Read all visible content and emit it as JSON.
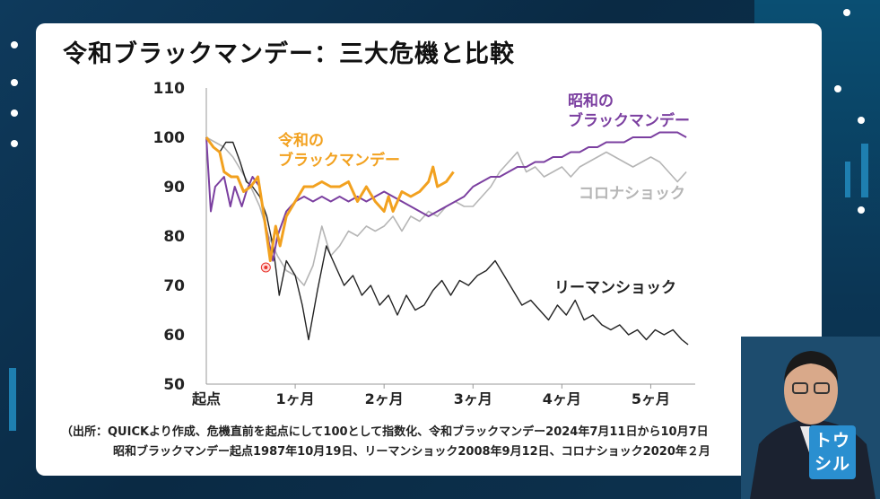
{
  "title": "令和ブラックマンデー：三大危機と比較",
  "footnote_line1": "（出所：QUICKより作成、危機直前を起点にして100として指数化、令和ブラックマンデー2024年7月11日から10月7日",
  "footnote_line2": "昭和ブラックマンデー起点1987年10月19日、リーマンショック2008年9月12日、コロナショック2020年２月",
  "logo": {
    "line1": "トウ",
    "line2": "シル"
  },
  "colors": {
    "reiwa": "#f2a11f",
    "showa": "#7b3fa0",
    "corona": "#b5b5b5",
    "lehman": "#222222",
    "marker": "#e8352d"
  },
  "chart_data": {
    "type": "line",
    "ylim": [
      50,
      110
    ],
    "yticks": [
      "110",
      "100",
      "90",
      "80",
      "70",
      "60",
      "50"
    ],
    "xticks": [
      "起点",
      "1ヶ月",
      "2ヶ月",
      "3ヶ月",
      "4ヶ月",
      "5ヶ月"
    ],
    "xlim": [
      0,
      5.5
    ],
    "series": [
      {
        "name": "令和のブラックマンデー",
        "label_lines": [
          "令和の",
          "ブラックマンデー"
        ],
        "color_key": "reiwa",
        "x": [
          0,
          0.08,
          0.15,
          0.2,
          0.28,
          0.35,
          0.42,
          0.5,
          0.58,
          0.65,
          0.72,
          0.78,
          0.83,
          0.9,
          1.0,
          1.1,
          1.2,
          1.3,
          1.4,
          1.5,
          1.6,
          1.7,
          1.8,
          1.9,
          2.0,
          2.05,
          2.1,
          2.2,
          2.3,
          2.4,
          2.5,
          2.55,
          2.6,
          2.7,
          2.78
        ],
        "values": [
          100,
          98,
          97,
          93,
          92,
          92,
          89,
          90,
          92,
          84,
          75,
          82,
          78,
          84,
          87,
          90,
          90,
          91,
          90,
          90,
          91,
          87,
          90,
          87,
          85,
          88,
          85,
          89,
          88,
          89,
          91,
          94,
          90,
          91,
          93
        ]
      },
      {
        "name": "昭和のブラックマンデー",
        "label_lines": [
          "昭和の",
          "ブラックマンデー"
        ],
        "color_key": "showa",
        "x": [
          0,
          0.05,
          0.1,
          0.15,
          0.2,
          0.27,
          0.32,
          0.4,
          0.45,
          0.52,
          0.6,
          0.65,
          0.7,
          0.75,
          0.8,
          0.9,
          1.0,
          1.1,
          1.2,
          1.3,
          1.4,
          1.5,
          1.6,
          1.7,
          1.8,
          1.9,
          2.0,
          2.1,
          2.2,
          2.3,
          2.4,
          2.5,
          2.6,
          2.7,
          2.8,
          2.9,
          3.0,
          3.1,
          3.2,
          3.3,
          3.4,
          3.5,
          3.6,
          3.7,
          3.8,
          3.9,
          4.0,
          4.1,
          4.2,
          4.3,
          4.4,
          4.5,
          4.6,
          4.7,
          4.8,
          4.9,
          5.0,
          5.1,
          5.2,
          5.3,
          5.4
        ],
        "values": [
          100,
          85,
          90,
          91,
          92,
          86,
          90,
          86,
          89,
          92,
          90,
          84,
          79,
          75,
          80,
          85,
          87,
          88,
          87,
          88,
          87,
          88,
          87,
          88,
          87,
          88,
          89,
          88,
          87,
          86,
          85,
          84,
          85,
          86,
          87,
          88,
          90,
          91,
          92,
          92,
          93,
          94,
          94,
          95,
          95,
          96,
          96,
          97,
          97,
          98,
          98,
          99,
          99,
          99,
          100,
          100,
          100,
          101,
          101,
          101,
          100
        ]
      },
      {
        "name": "コロナショック",
        "label_lines": [
          "コロナショック"
        ],
        "color_key": "corona",
        "x": [
          0,
          0.1,
          0.2,
          0.3,
          0.4,
          0.5,
          0.6,
          0.7,
          0.8,
          0.9,
          1.0,
          1.1,
          1.2,
          1.3,
          1.4,
          1.5,
          1.6,
          1.7,
          1.8,
          1.9,
          2.0,
          2.1,
          2.2,
          2.3,
          2.4,
          2.5,
          2.6,
          2.7,
          2.8,
          2.9,
          3.0,
          3.1,
          3.2,
          3.3,
          3.4,
          3.5,
          3.6,
          3.7,
          3.8,
          3.9,
          4.0,
          4.1,
          4.2,
          4.3,
          4.4,
          4.5,
          4.6,
          4.7,
          4.8,
          4.9,
          5.0,
          5.1,
          5.2,
          5.3,
          5.4
        ],
        "values": [
          100,
          99,
          98,
          96,
          93,
          90,
          86,
          80,
          76,
          73,
          72,
          70,
          74,
          82,
          76,
          78,
          81,
          80,
          82,
          81,
          82,
          84,
          81,
          84,
          83,
          85,
          84,
          86,
          87,
          86,
          86,
          88,
          90,
          93,
          95,
          97,
          93,
          94,
          92,
          93,
          94,
          92,
          94,
          95,
          96,
          97,
          96,
          95,
          94,
          95,
          96,
          95,
          93,
          91,
          93
        ]
      },
      {
        "name": "リーマンショック",
        "label_lines": [
          "リーマンショック"
        ],
        "color_key": "lehman",
        "x": [
          0,
          0.08,
          0.15,
          0.22,
          0.3,
          0.38,
          0.45,
          0.52,
          0.6,
          0.68,
          0.75,
          0.82,
          0.9,
          1.0,
          1.08,
          1.15,
          1.25,
          1.35,
          1.45,
          1.55,
          1.65,
          1.75,
          1.85,
          1.95,
          2.05,
          2.15,
          2.25,
          2.35,
          2.45,
          2.55,
          2.65,
          2.75,
          2.85,
          2.95,
          3.05,
          3.15,
          3.25,
          3.35,
          3.45,
          3.55,
          3.65,
          3.75,
          3.85,
          3.95,
          4.05,
          4.15,
          4.25,
          4.35,
          4.45,
          4.55,
          4.65,
          4.75,
          4.85,
          4.95,
          5.05,
          5.15,
          5.25,
          5.35,
          5.42
        ],
        "values": [
          100,
          98,
          97,
          99,
          99,
          95,
          91,
          90,
          88,
          84,
          78,
          68,
          75,
          72,
          66,
          59,
          69,
          78,
          74,
          70,
          72,
          68,
          70,
          66,
          68,
          64,
          68,
          65,
          66,
          69,
          71,
          68,
          71,
          70,
          72,
          73,
          75,
          72,
          69,
          66,
          67,
          65,
          63,
          66,
          64,
          67,
          63,
          64,
          62,
          61,
          62,
          60,
          61,
          59,
          61,
          60,
          61,
          59,
          58
        ]
      }
    ],
    "annotation_point": {
      "x": 0.72,
      "y": 74
    }
  }
}
